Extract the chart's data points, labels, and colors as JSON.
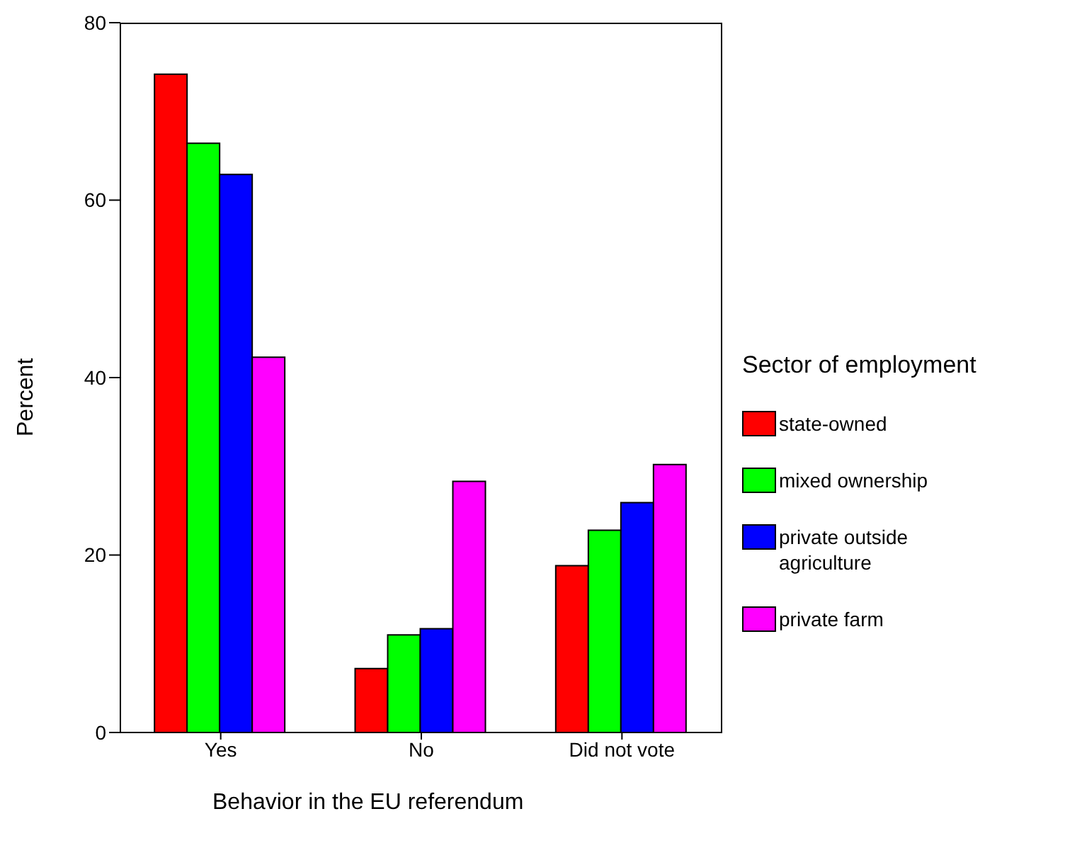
{
  "chart_data": {
    "type": "bar",
    "xlabel": "Behavior in the EU referendum",
    "ylabel": "Percent",
    "legend_title": "Sector of employment",
    "legend": "right",
    "categories": [
      "Yes",
      "No",
      "Did not vote"
    ],
    "ylim": [
      0,
      80
    ],
    "yticks": [
      0,
      20,
      40,
      60,
      80
    ],
    "series": [
      {
        "name": "state-owned",
        "color": "#ff0000",
        "values": [
          74.2,
          7.2,
          18.8
        ]
      },
      {
        "name": "mixed ownership",
        "color": "#00ff00",
        "values": [
          66.4,
          11.0,
          22.8
        ]
      },
      {
        "name": "private outside agriculture",
        "color": "#0000ff",
        "values": [
          62.9,
          11.7,
          25.9
        ]
      },
      {
        "name": "private farm",
        "color": "#ff00ff",
        "values": [
          42.3,
          28.3,
          30.2
        ]
      }
    ]
  }
}
